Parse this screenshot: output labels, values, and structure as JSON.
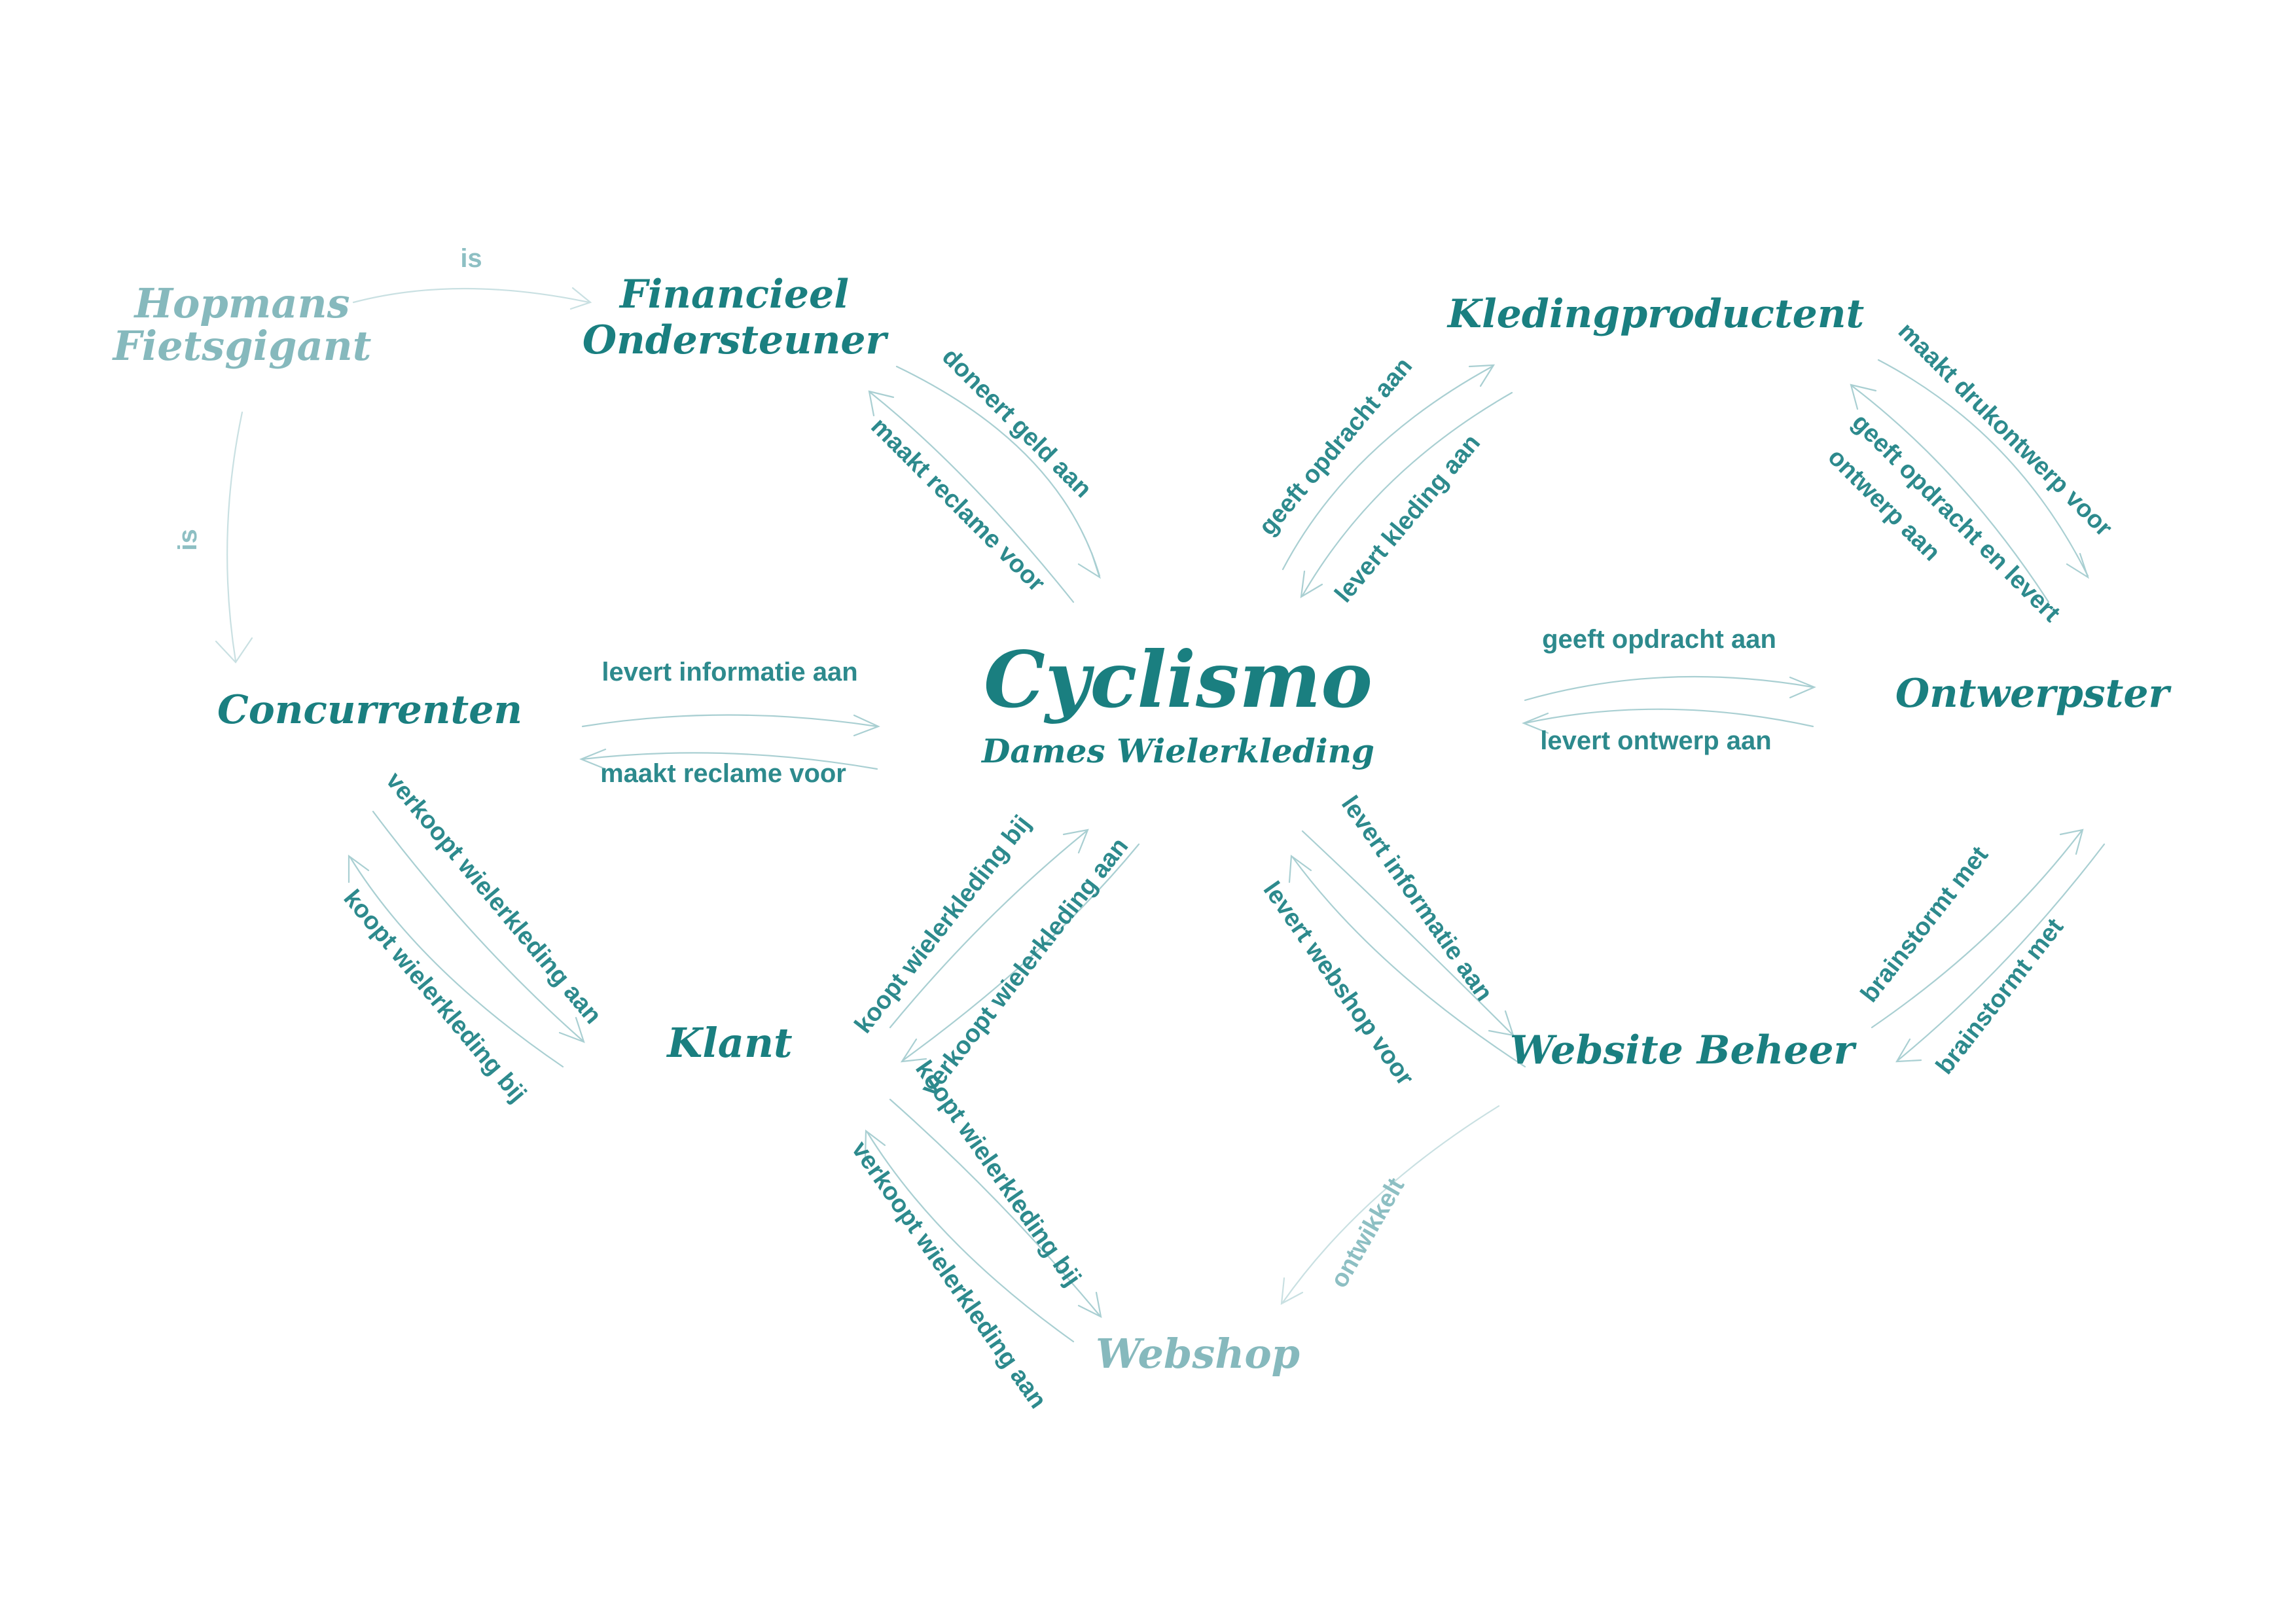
{
  "colors": {
    "primary": "#1a7f80",
    "faded": "#86b9bd",
    "arrow": "#a9cfd2",
    "label": "#2d8a8d"
  },
  "nodes": {
    "cyclismo": "Cyclismo",
    "cyclismo_sub": "Dames Wielerkleding",
    "hopmans_line1": "Hopmans",
    "hopmans_line2": "Fietsgigant",
    "financieel_line1": "Financieel",
    "financieel_line2": "Ondersteuner",
    "kledingproducent": "Kledingproductent",
    "concurrenten": "Concurrenten",
    "ontwerpster": "Ontwerpster",
    "klant": "Klant",
    "website_beheer": "Website Beheer",
    "webshop": "Webshop"
  },
  "edges": {
    "hopmans_is_financieel": "is",
    "hopmans_is_concurrenten": "is",
    "doneert_geld_aan": "doneert geld aan",
    "maakt_reclame_voor_fin": "maakt reclame voor",
    "geeft_opdracht_aan_kled": "geeft opdracht aan",
    "levert_kleding_aan": "levert kleding aan",
    "maakt_drukontwerp_voor": "maakt drukontwerp voor",
    "geeft_opdracht_en_levert_1": "geeft opdracht en levert",
    "geeft_opdracht_en_levert_2": "ontwerp aan",
    "levert_informatie_aan_conc": "levert informatie aan",
    "maakt_reclame_voor_conc": "maakt reclame voor",
    "geeft_opdracht_aan_ontw": "geeft opdracht aan",
    "levert_ontwerp_aan": "levert ontwerp aan",
    "verkoopt_wielerkleding_aan_conc": "verkoopt wielerkleding aan",
    "koopt_wielerkleding_bij_conc": "koopt wielerkleding bij",
    "koopt_wielerkleding_bij_cyc": "koopt wielerkleding bij",
    "verkoopt_wielerkleding_aan_cyc": "verkoopt wielerkleding aan",
    "levert_informatie_aan_web": "levert informatie aan",
    "levert_webshop_voor": "levert webshop voor",
    "brainstormt_met_1": "brainstormt met",
    "brainstormt_met_2": "brainstormt met",
    "koopt_wielerkleding_bij_shop": "koopt wielerkleding bij",
    "verkoopt_wielerkleding_aan_shop": "verkoopt wielerkleding aan",
    "ontwikkelt": "ontwikkelt"
  }
}
